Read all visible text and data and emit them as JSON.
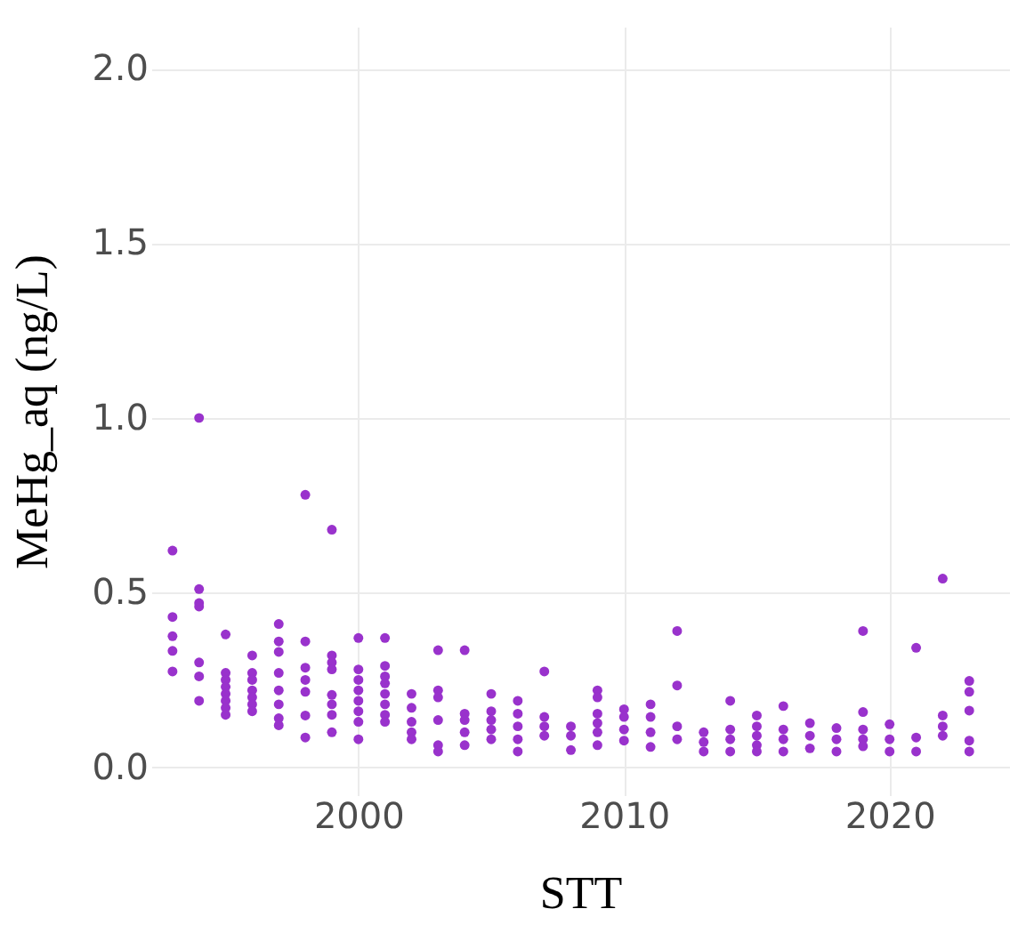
{
  "chart_data": {
    "type": "scatter",
    "xlabel": "STT",
    "ylabel": "MeHg_aq (ng/L)",
    "marker": "circle",
    "grid": true,
    "xlim": [
      1992.2,
      2024.5
    ],
    "ylim": [
      -0.08,
      2.12
    ],
    "xticks": [
      2000,
      2010,
      2020
    ],
    "yticks": [
      {
        "value": 0,
        "label": "0.0"
      },
      {
        "value": 0.5,
        "label": "0.5"
      },
      {
        "value": 1,
        "label": "1.0"
      },
      {
        "value": 1.5,
        "label": "1.5"
      },
      {
        "value": 2,
        "label": "2.0"
      }
    ],
    "series": [
      {
        "color": "#9932cc",
        "x": [
          1993,
          1993,
          1993,
          1993,
          1993,
          1994,
          1994,
          1994,
          1994,
          1994,
          1994,
          1994,
          1995,
          1995,
          1995,
          1995,
          1995,
          1995,
          1995,
          1995,
          1996,
          1996,
          1996,
          1996,
          1996,
          1996,
          1996,
          1997,
          1997,
          1997,
          1997,
          1997,
          1997,
          1997,
          1997,
          1998,
          1998,
          1998,
          1998,
          1998,
          1998,
          1998,
          1999,
          1999,
          1999,
          1999,
          1999,
          1999,
          1999,
          1999,
          2000,
          2000,
          2000,
          2000,
          2000,
          2000,
          2000,
          2000,
          2001,
          2001,
          2001,
          2001,
          2001,
          2001,
          2001,
          2001,
          2002,
          2002,
          2002,
          2002,
          2002,
          2003,
          2003,
          2003,
          2003,
          2003,
          2003,
          2004,
          2004,
          2004,
          2004,
          2004,
          2005,
          2005,
          2005,
          2005,
          2005,
          2006,
          2006,
          2006,
          2006,
          2006,
          2007,
          2007,
          2007,
          2007,
          2008,
          2008,
          2008,
          2009,
          2009,
          2009,
          2009,
          2009,
          2009,
          2010,
          2010,
          2010,
          2010,
          2011,
          2011,
          2011,
          2011,
          2012,
          2012,
          2012,
          2012,
          2013,
          2013,
          2013,
          2014,
          2014,
          2014,
          2014,
          2015,
          2015,
          2015,
          2015,
          2015,
          2016,
          2016,
          2016,
          2016,
          2017,
          2017,
          2017,
          2018,
          2018,
          2018,
          2019,
          2019,
          2019,
          2019,
          2019,
          2020,
          2020,
          2020,
          2021,
          2021,
          2021,
          2022,
          2022,
          2022,
          2022,
          2023,
          2023,
          2023,
          2023,
          2023
        ],
        "values": [
          0.62,
          0.43,
          0.375,
          0.333,
          0.274,
          1.0,
          0.51,
          0.47,
          0.46,
          0.3,
          0.26,
          0.19,
          0.38,
          0.27,
          0.25,
          0.23,
          0.21,
          0.19,
          0.17,
          0.15,
          0.32,
          0.27,
          0.25,
          0.22,
          0.2,
          0.18,
          0.16,
          0.41,
          0.36,
          0.33,
          0.27,
          0.22,
          0.18,
          0.14,
          0.12,
          0.78,
          0.36,
          0.285,
          0.25,
          0.216,
          0.148,
          0.085,
          0.68,
          0.32,
          0.3,
          0.28,
          0.207,
          0.18,
          0.15,
          0.1,
          0.37,
          0.28,
          0.25,
          0.22,
          0.19,
          0.16,
          0.13,
          0.08,
          0.37,
          0.29,
          0.26,
          0.24,
          0.21,
          0.18,
          0.15,
          0.13,
          0.21,
          0.17,
          0.13,
          0.1,
          0.08,
          0.335,
          0.22,
          0.2,
          0.135,
          0.063,
          0.045,
          0.335,
          0.153,
          0.135,
          0.1,
          0.063,
          0.21,
          0.16,
          0.135,
          0.108,
          0.08,
          0.19,
          0.153,
          0.117,
          0.08,
          0.045,
          0.274,
          0.144,
          0.117,
          0.09,
          0.117,
          0.09,
          0.049,
          0.22,
          0.2,
          0.153,
          0.126,
          0.1,
          0.063,
          0.166,
          0.144,
          0.108,
          0.076,
          0.18,
          0.144,
          0.1,
          0.058,
          0.39,
          0.234,
          0.117,
          0.08,
          0.1,
          0.072,
          0.045,
          0.19,
          0.108,
          0.08,
          0.045,
          0.148,
          0.117,
          0.09,
          0.063,
          0.045,
          0.175,
          0.108,
          0.08,
          0.045,
          0.126,
          0.09,
          0.054,
          0.112,
          0.08,
          0.045,
          0.39,
          0.158,
          0.108,
          0.08,
          0.06,
          0.123,
          0.08,
          0.045,
          0.342,
          0.085,
          0.045,
          0.54,
          0.148,
          0.117,
          0.09,
          0.247,
          0.216,
          0.162,
          0.076,
          0.045
        ]
      }
    ]
  }
}
